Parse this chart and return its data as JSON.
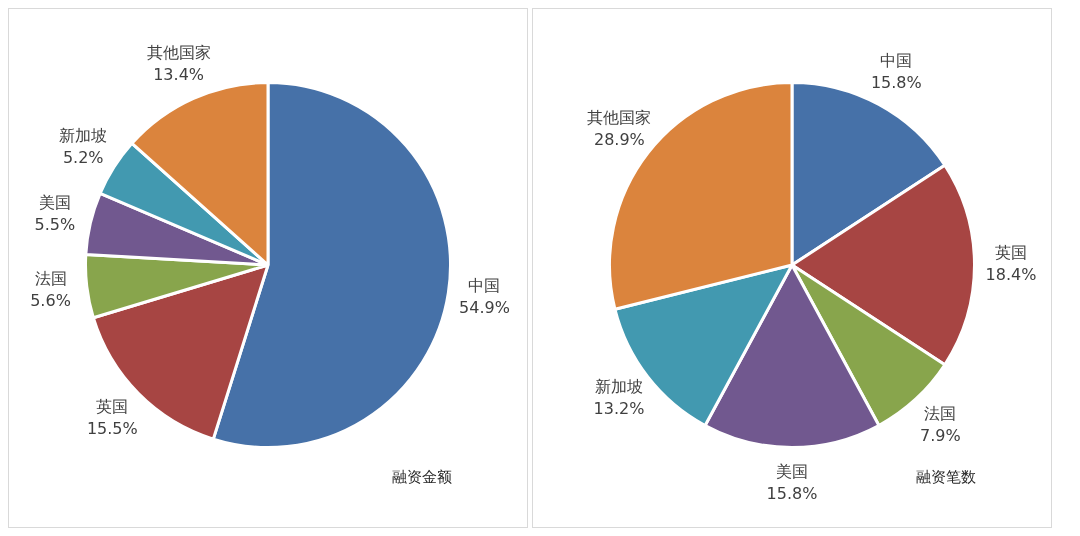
{
  "chart_data": [
    {
      "type": "pie",
      "title": "融资金额",
      "categories": [
        "中国",
        "英国",
        "法国",
        "美国",
        "新加坡",
        "其他国家"
      ],
      "values": [
        54.9,
        15.5,
        5.6,
        5.5,
        5.2,
        13.4
      ],
      "value_labels": [
        "54.9%",
        "15.5%",
        "5.6%",
        "5.5%",
        "5.2%",
        "13.4%"
      ],
      "colors": [
        "#4671a8",
        "#a74543",
        "#88a54c",
        "#71588f",
        "#4299b0",
        "#db843d"
      ],
      "legend": false
    },
    {
      "type": "pie",
      "title": "融资笔数",
      "categories": [
        "中国",
        "英国",
        "法国",
        "美国",
        "新加坡",
        "其他国家"
      ],
      "values": [
        15.8,
        18.4,
        7.9,
        15.8,
        13.2,
        28.9
      ],
      "value_labels": [
        "15.8%",
        "18.4%",
        "7.9%",
        "15.8%",
        "13.2%",
        "28.9%"
      ],
      "colors": [
        "#4671a8",
        "#a74543",
        "#88a54c",
        "#71588f",
        "#4299b0",
        "#db843d"
      ],
      "legend": false
    }
  ]
}
